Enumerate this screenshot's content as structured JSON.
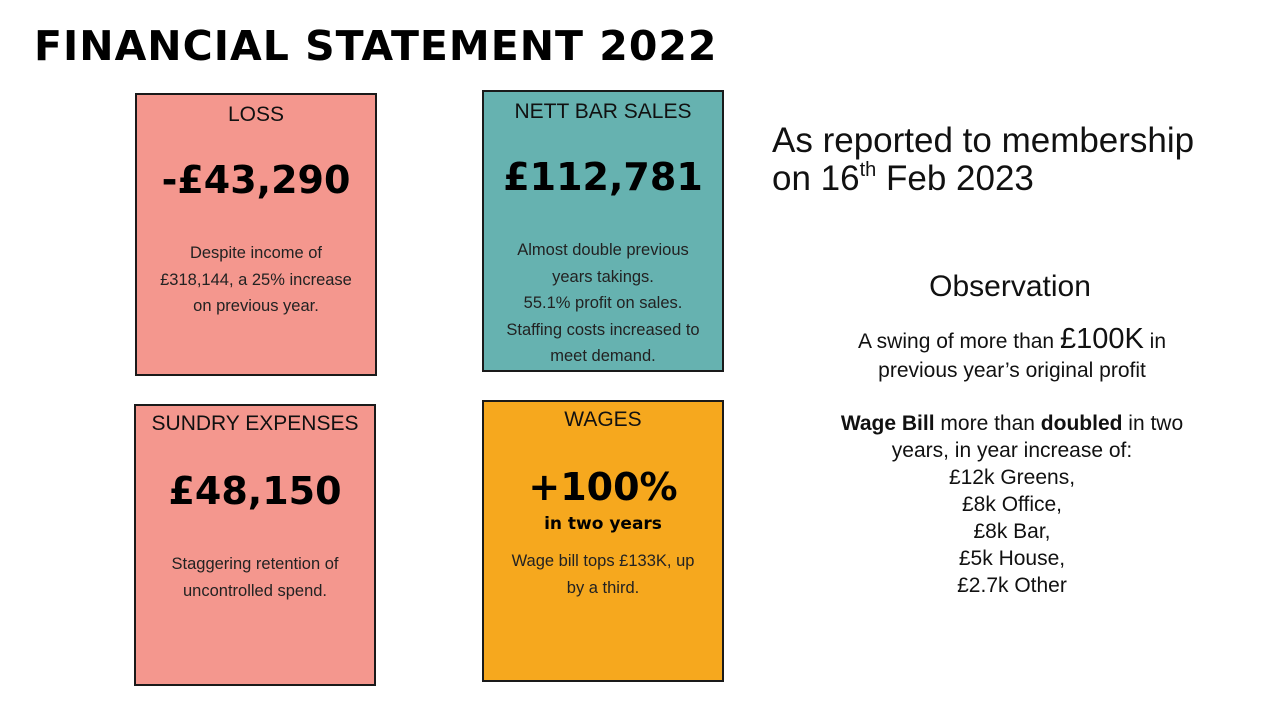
{
  "title": "FINANCIAL STATEMENT 2022",
  "cards": {
    "loss": {
      "label": "LOSS",
      "value": "-£43,290",
      "desc": [
        "Despite income of",
        "£318,144, a 25% increase",
        "on previous year."
      ],
      "color": "#f4978e"
    },
    "sales": {
      "label": "NETT BAR SALES",
      "value": "£112,781",
      "desc": [
        "Almost double previous",
        "years takings.",
        "55.1% profit on sales.",
        "Staffing costs increased to",
        "meet demand."
      ],
      "color": "#66b2b0"
    },
    "sundry": {
      "label": "SUNDRY EXPENSES",
      "value": "£48,150",
      "desc": [
        "Staggering retention of",
        "uncontrolled spend."
      ],
      "color": "#f4978e"
    },
    "wages": {
      "label": "WAGES",
      "value": "+100%",
      "sub": "in two years",
      "desc": [
        "Wage bill tops £133K, up",
        "by a third."
      ],
      "color": "#f6a81e"
    }
  },
  "reported": {
    "line1": "As reported to membership",
    "line2_prefix": "on 16",
    "line2_sup": "th",
    "line2_suffix": " Feb 2023"
  },
  "observation": {
    "title": "Observation",
    "swing_prefix": "A swing of more than ",
    "swing_amount": "£100K",
    "swing_suffix": " in",
    "swing_line2": "previous year’s original profit",
    "wage_bold1": "Wage Bill",
    "wage_text1": " more than ",
    "wage_bold2": "doubled",
    "wage_text2": " in two",
    "wage_line2": "years, in year increase of:",
    "increases": [
      "£12k Greens,",
      "£8k Office,",
      "£8k Bar,",
      "£5k House,",
      "£2.7k Other"
    ]
  }
}
